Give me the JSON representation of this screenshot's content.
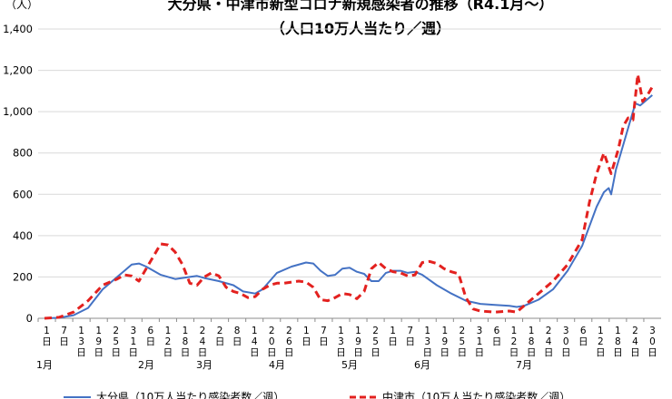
{
  "chart_data": {
    "type": "line",
    "title": "大分県・中津市新型コロナ新規感染者の推移（R4.1月～）",
    "subtitle": "（人口10万人当たり／週）",
    "ylabel": "（人）",
    "ylim": [
      0,
      1400
    ],
    "yticks": [
      0,
      200,
      400,
      600,
      800,
      1000,
      1200,
      1400
    ],
    "ytick_labels": [
      "0",
      "200",
      "400",
      "600",
      "800",
      "1,000",
      "1,200",
      "1,400"
    ],
    "grid": true,
    "x_start": "2022-01-01",
    "day_labels": [
      "1日",
      "7日",
      "13日",
      "19日",
      "25日",
      "31日",
      "6日",
      "12日",
      "18日",
      "24日",
      "2日",
      "8日",
      "14日",
      "20日",
      "26日",
      "1日",
      "7日",
      "13日",
      "19日",
      "25日",
      "1日",
      "7日",
      "13日",
      "19日",
      "25日",
      "31日",
      "6日",
      "12日",
      "18日",
      "24日",
      "30日",
      "6日",
      "12日",
      "18日",
      "24日",
      "30日"
    ],
    "months": [
      {
        "label": "1月",
        "at": "2022-01-01"
      },
      {
        "label": "2月",
        "at": "2022-02-12"
      },
      {
        "label": "3月",
        "at": "2022-03-08"
      },
      {
        "label": "4月",
        "at": "2022-04-07"
      },
      {
        "label": "5月",
        "at": "2022-05-07"
      },
      {
        "label": "6月",
        "at": "2022-06-06"
      },
      {
        "label": "7月",
        "at": "2022-07-18"
      }
    ],
    "legend_position": "bottom",
    "series": [
      {
        "name": "大分県（10万人当たり感染者数／週）",
        "color": "#4472C4",
        "style": "solid",
        "points": [
          [
            "2022-01-01",
            0
          ],
          [
            "2022-01-07",
            2
          ],
          [
            "2022-01-13",
            15
          ],
          [
            "2022-01-19",
            50
          ],
          [
            "2022-01-25",
            140
          ],
          [
            "2022-01-31",
            200
          ],
          [
            "2022-02-03",
            230
          ],
          [
            "2022-02-06",
            260
          ],
          [
            "2022-02-09",
            265
          ],
          [
            "2022-02-12",
            250
          ],
          [
            "2022-02-18",
            210
          ],
          [
            "2022-02-24",
            190
          ],
          [
            "2022-03-02",
            200
          ],
          [
            "2022-03-05",
            205
          ],
          [
            "2022-03-08",
            195
          ],
          [
            "2022-03-14",
            180
          ],
          [
            "2022-03-20",
            160
          ],
          [
            "2022-03-24",
            130
          ],
          [
            "2022-03-29",
            120
          ],
          [
            "2022-04-01",
            140
          ],
          [
            "2022-04-04",
            180
          ],
          [
            "2022-04-07",
            220
          ],
          [
            "2022-04-13",
            250
          ],
          [
            "2022-04-19",
            270
          ],
          [
            "2022-04-22",
            265
          ],
          [
            "2022-04-25",
            230
          ],
          [
            "2022-04-28",
            205
          ],
          [
            "2022-05-01",
            210
          ],
          [
            "2022-05-04",
            240
          ],
          [
            "2022-05-07",
            245
          ],
          [
            "2022-05-10",
            225
          ],
          [
            "2022-05-13",
            215
          ],
          [
            "2022-05-16",
            180
          ],
          [
            "2022-05-19",
            180
          ],
          [
            "2022-05-22",
            220
          ],
          [
            "2022-05-25",
            230
          ],
          [
            "2022-05-28",
            230
          ],
          [
            "2022-05-31",
            220
          ],
          [
            "2022-06-03",
            225
          ],
          [
            "2022-06-06",
            210
          ],
          [
            "2022-06-12",
            160
          ],
          [
            "2022-06-18",
            120
          ],
          [
            "2022-06-24",
            85
          ],
          [
            "2022-06-30",
            70
          ],
          [
            "2022-07-06",
            65
          ],
          [
            "2022-07-12",
            60
          ],
          [
            "2022-07-15",
            55
          ],
          [
            "2022-07-18",
            60
          ],
          [
            "2022-07-24",
            90
          ],
          [
            "2022-07-30",
            140
          ],
          [
            "2022-08-05",
            230
          ],
          [
            "2022-08-11",
            350
          ],
          [
            "2022-08-17",
            540
          ],
          [
            "2022-08-20",
            610
          ],
          [
            "2022-08-22",
            630
          ],
          [
            "2022-08-23",
            600
          ],
          [
            "2022-08-25",
            720
          ],
          [
            "2022-08-27",
            800
          ],
          [
            "2022-08-29",
            880
          ],
          [
            "2022-08-31",
            960
          ],
          [
            "2022-09-02",
            1040
          ],
          [
            "2022-09-04",
            1030
          ],
          [
            "2022-09-06",
            1050
          ],
          [
            "2022-09-09",
            1080
          ]
        ]
      },
      {
        "name": "中津市（10万人当たり感染者数／週）",
        "color": "#E3211F",
        "style": "dashed",
        "points": [
          [
            "2022-01-01",
            0
          ],
          [
            "2022-01-07",
            5
          ],
          [
            "2022-01-13",
            30
          ],
          [
            "2022-01-19",
            85
          ],
          [
            "2022-01-25",
            160
          ],
          [
            "2022-01-31",
            190
          ],
          [
            "2022-02-03",
            210
          ],
          [
            "2022-02-06",
            205
          ],
          [
            "2022-02-09",
            180
          ],
          [
            "2022-02-12",
            240
          ],
          [
            "2022-02-15",
            300
          ],
          [
            "2022-02-18",
            360
          ],
          [
            "2022-02-21",
            355
          ],
          [
            "2022-02-24",
            320
          ],
          [
            "2022-02-27",
            260
          ],
          [
            "2022-03-02",
            170
          ],
          [
            "2022-03-05",
            160
          ],
          [
            "2022-03-08",
            200
          ],
          [
            "2022-03-11",
            220
          ],
          [
            "2022-03-14",
            205
          ],
          [
            "2022-03-17",
            150
          ],
          [
            "2022-03-20",
            130
          ],
          [
            "2022-03-23",
            120
          ],
          [
            "2022-03-26",
            100
          ],
          [
            "2022-03-29",
            105
          ],
          [
            "2022-04-01",
            140
          ],
          [
            "2022-04-04",
            160
          ],
          [
            "2022-04-07",
            170
          ],
          [
            "2022-04-10",
            170
          ],
          [
            "2022-04-13",
            175
          ],
          [
            "2022-04-16",
            180
          ],
          [
            "2022-04-19",
            175
          ],
          [
            "2022-04-22",
            150
          ],
          [
            "2022-04-25",
            90
          ],
          [
            "2022-04-28",
            85
          ],
          [
            "2022-05-01",
            100
          ],
          [
            "2022-05-04",
            120
          ],
          [
            "2022-05-07",
            115
          ],
          [
            "2022-05-10",
            95
          ],
          [
            "2022-05-13",
            130
          ],
          [
            "2022-05-16",
            240
          ],
          [
            "2022-05-19",
            270
          ],
          [
            "2022-05-22",
            240
          ],
          [
            "2022-05-25",
            225
          ],
          [
            "2022-05-28",
            220
          ],
          [
            "2022-05-31",
            205
          ],
          [
            "2022-06-03",
            210
          ],
          [
            "2022-06-06",
            270
          ],
          [
            "2022-06-09",
            275
          ],
          [
            "2022-06-12",
            265
          ],
          [
            "2022-06-15",
            240
          ],
          [
            "2022-06-18",
            225
          ],
          [
            "2022-06-21",
            215
          ],
          [
            "2022-06-24",
            100
          ],
          [
            "2022-06-27",
            45
          ],
          [
            "2022-06-30",
            35
          ],
          [
            "2022-07-06",
            30
          ],
          [
            "2022-07-12",
            35
          ],
          [
            "2022-07-15",
            30
          ],
          [
            "2022-07-18",
            60
          ],
          [
            "2022-07-24",
            120
          ],
          [
            "2022-07-30",
            180
          ],
          [
            "2022-08-05",
            260
          ],
          [
            "2022-08-11",
            380
          ],
          [
            "2022-08-14",
            560
          ],
          [
            "2022-08-17",
            700
          ],
          [
            "2022-08-20",
            800
          ],
          [
            "2022-08-23",
            700
          ],
          [
            "2022-08-26",
            820
          ],
          [
            "2022-08-28",
            930
          ],
          [
            "2022-08-30",
            970
          ],
          [
            "2022-09-01",
            960
          ],
          [
            "2022-09-03",
            1180
          ],
          [
            "2022-09-05",
            1050
          ],
          [
            "2022-09-07",
            1080
          ],
          [
            "2022-09-09",
            1120
          ]
        ]
      }
    ]
  }
}
